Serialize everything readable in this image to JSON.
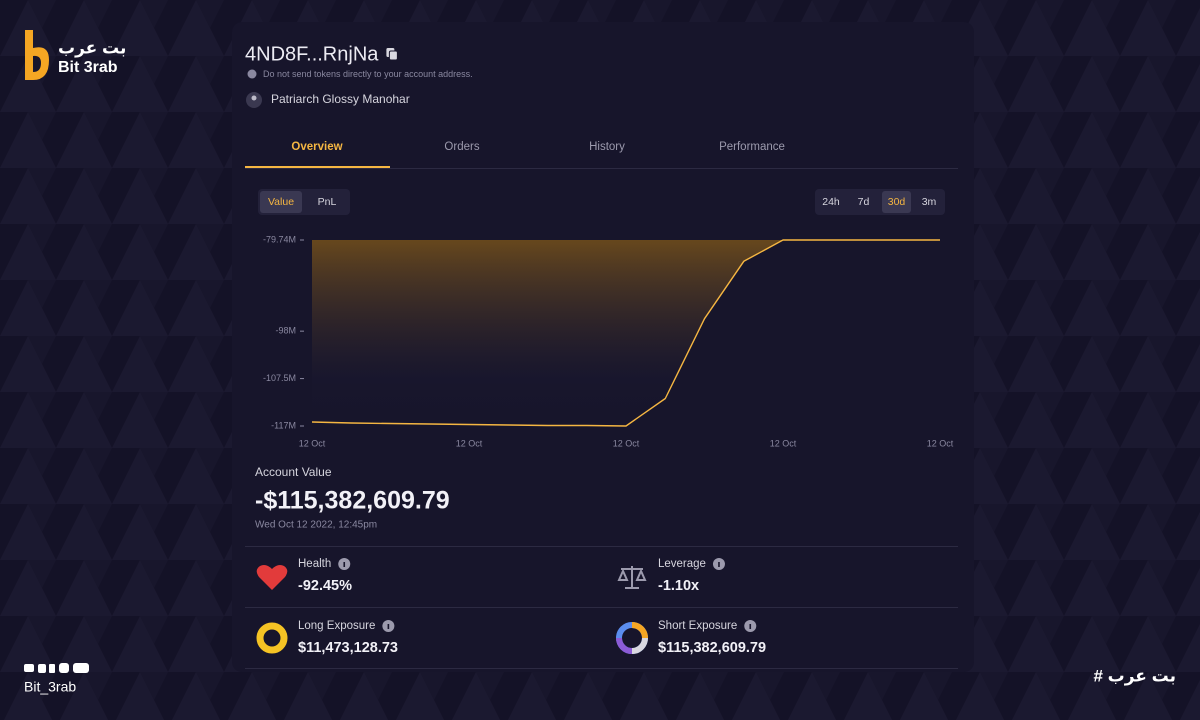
{
  "brand": {
    "name_ar": "بت عرب",
    "name_en": "Bit 3rab",
    "handle": "Bit_3rab",
    "hashtag": "# بت عرب"
  },
  "account": {
    "address": "4ND8F...RnjNa",
    "warning": "Do not send tokens directly to your account address.",
    "owner": "Patriarch Glossy Manohar"
  },
  "tabs": [
    {
      "label": "Overview",
      "active": true
    },
    {
      "label": "Orders",
      "active": false
    },
    {
      "label": "History",
      "active": false
    },
    {
      "label": "Performance",
      "active": false
    }
  ],
  "modes": [
    {
      "label": "Value",
      "active": true
    },
    {
      "label": "PnL",
      "active": false
    }
  ],
  "ranges": [
    {
      "label": "24h",
      "active": false
    },
    {
      "label": "7d",
      "active": false
    },
    {
      "label": "30d",
      "active": true
    },
    {
      "label": "3m",
      "active": false
    }
  ],
  "chart_data": {
    "type": "area",
    "color": "#f5b642",
    "categories": [
      "12 Oct",
      null,
      null,
      null,
      "12 Oct",
      null,
      null,
      null,
      "12 Oct",
      null,
      null,
      null,
      "12 Oct",
      null,
      null,
      null,
      "12 Oct"
    ],
    "values": [
      -116.2,
      -116.4,
      -116.5,
      -116.6,
      -116.7,
      -116.8,
      -116.9,
      -116.9,
      -117,
      -111.5,
      -95.5,
      -84,
      -79.74,
      -79.74,
      -79.74,
      -79.74,
      -79.74
    ],
    "ylim": [
      -117,
      -79.74
    ],
    "yticks": [
      {
        "value": -79.74,
        "label": "-79.74M"
      },
      {
        "value": -98,
        "label": "-98M"
      },
      {
        "value": -107.5,
        "label": "-107.5M"
      },
      {
        "value": -117,
        "label": "-117M"
      }
    ]
  },
  "summary": {
    "label": "Account Value",
    "value": "-$115,382,609.79",
    "date": "Wed Oct 12 2022, 12:45pm"
  },
  "stats": [
    {
      "label": "Health",
      "value": "-92.45%"
    },
    {
      "label": "Leverage",
      "value": "-1.10x"
    },
    {
      "label": "Long Exposure",
      "value": "$11,473,128.73"
    },
    {
      "label": "Short Exposure",
      "value": "$115,382,609.79"
    }
  ]
}
